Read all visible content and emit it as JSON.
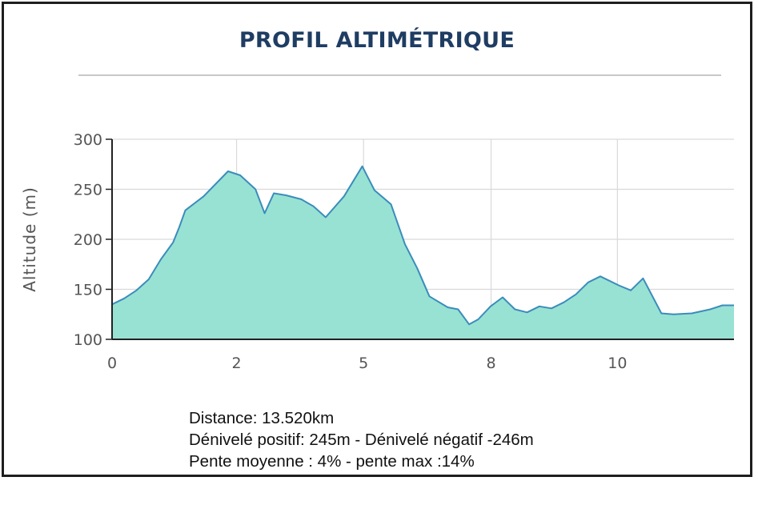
{
  "title": "PROFIL ALTIMÉTRIQUE",
  "chart_data": {
    "type": "area",
    "ylabel": "Altitude (m)",
    "xlabel": "",
    "ylim": [
      100,
      300
    ],
    "yticks": [
      100,
      150,
      200,
      250,
      300
    ],
    "xticks": [
      {
        "label": "0",
        "x": 0
      },
      {
        "label": "2",
        "x": 2.04
      },
      {
        "label": "5",
        "x": 4.12
      },
      {
        "label": "8",
        "x": 6.21
      },
      {
        "label": "10",
        "x": 8.28
      }
    ],
    "xlim": [
      0,
      10.19
    ],
    "grid": true,
    "colors": {
      "fill": "#98e2d3",
      "line": "#3b8cbc",
      "grid": "#d9d9d9",
      "axis": "#222222"
    },
    "x": [
      0,
      0.2,
      0.4,
      0.6,
      0.8,
      1.0,
      1.1,
      1.2,
      1.5,
      1.9,
      2.1,
      2.35,
      2.5,
      2.65,
      2.85,
      3.1,
      3.3,
      3.5,
      3.8,
      4.1,
      4.3,
      4.57,
      4.8,
      5.0,
      5.2,
      5.5,
      5.67,
      5.85,
      6.0,
      6.2,
      6.4,
      6.6,
      6.8,
      7.0,
      7.2,
      7.4,
      7.6,
      7.8,
      8.0,
      8.3,
      8.5,
      8.7,
      9.0,
      9.2,
      9.5,
      9.8,
      10.0,
      10.19
    ],
    "y": [
      135,
      141,
      149,
      160,
      180,
      197,
      212,
      229,
      243,
      268,
      264,
      250,
      226,
      246,
      244,
      240,
      233,
      222,
      243,
      273,
      249,
      235,
      195,
      171,
      143,
      132,
      130,
      115,
      120,
      133,
      142,
      130,
      127,
      133,
      131,
      137,
      145,
      157,
      163,
      154,
      149,
      161,
      126,
      125,
      126,
      130,
      134,
      134
    ]
  },
  "stats": {
    "distance": "Distance: 13.520km",
    "denivele": "Dénivelé positif: 245m - Dénivelé négatif -246m",
    "pente": "Pente moyenne : 4% - pente max :14%"
  }
}
